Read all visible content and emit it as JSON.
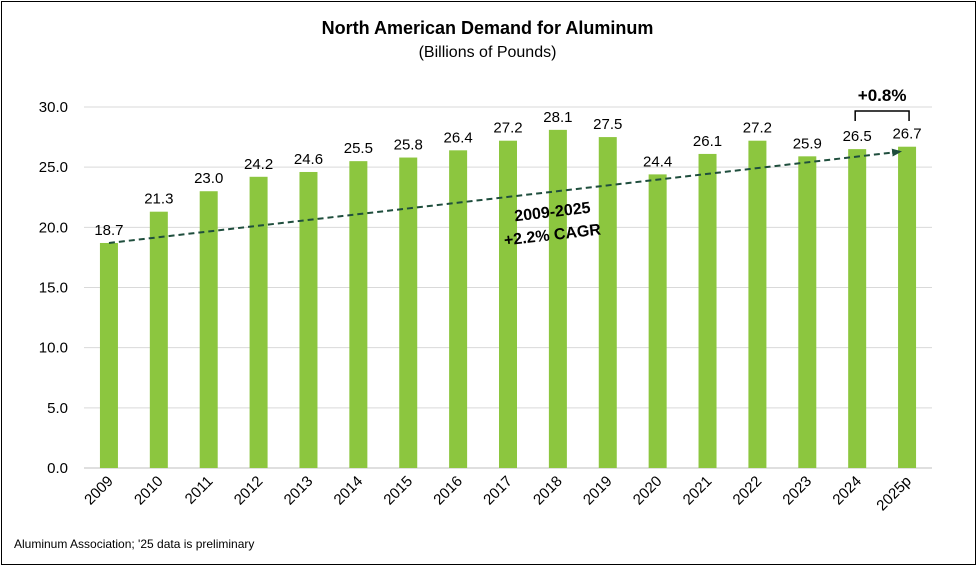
{
  "chart_data": {
    "type": "bar",
    "title": "North American Demand for Aluminum",
    "subtitle": "(Billions of Pounds)",
    "categories": [
      "2009",
      "2010",
      "2011",
      "2012",
      "2013",
      "2014",
      "2015",
      "2016",
      "2017",
      "2018",
      "2019",
      "2020",
      "2021",
      "2022",
      "2023",
      "2024",
      "2025p"
    ],
    "values": [
      18.7,
      21.3,
      23.0,
      24.2,
      24.6,
      25.5,
      25.8,
      26.4,
      27.2,
      28.1,
      27.5,
      24.4,
      26.1,
      27.2,
      25.9,
      26.5,
      26.7
    ],
    "value_labels": [
      "18.7",
      "21.3",
      "23.0",
      "24.2",
      "24.6",
      "25.5",
      "25.8",
      "26.4",
      "27.2",
      "28.1",
      "27.5",
      "24.4",
      "26.1",
      "27.2",
      "25.9",
      "26.5",
      "26.7"
    ],
    "ylim": [
      0,
      30
    ],
    "yticks": [
      "0.0",
      "5.0",
      "10.0",
      "15.0",
      "20.0",
      "25.0",
      "30.0"
    ],
    "grid": true,
    "legend": "none",
    "bar_color": "#8cc63f",
    "trendline": {
      "from_category": "2009",
      "from_value": 18.7,
      "to_category": "2025p",
      "to_value": 26.3,
      "style": "dashed",
      "color": "#1f4e3d",
      "label_line1": "2009-2025",
      "label_line2": "+2.2% CAGR"
    },
    "annotation": {
      "text": "+0.8%",
      "from_category": "2024",
      "to_category": "2025p"
    }
  },
  "source_note": "Aluminum Association; '25 data is preliminary"
}
